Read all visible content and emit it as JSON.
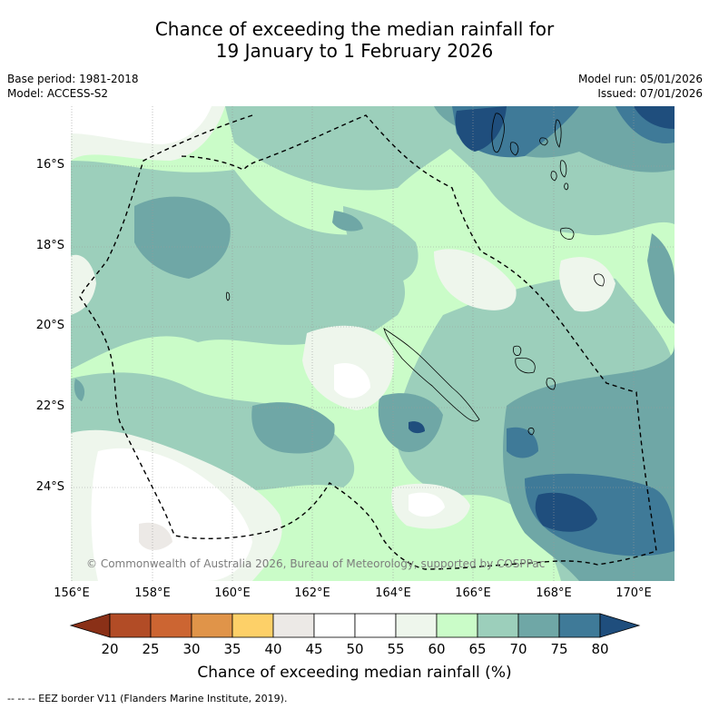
{
  "title": {
    "line1": "Chance of exceeding the median rainfall for",
    "line2": "19 January to 1 February 2026"
  },
  "meta": {
    "base_period": "Base period: 1981-2018",
    "model": "Model: ACCESS-S2",
    "model_run": "Model run: 05/01/2026",
    "issued": "Issued: 07/01/2026"
  },
  "lat_labels": [
    "16°S",
    "18°S",
    "20°S",
    "22°S",
    "24°S"
  ],
  "lon_labels": [
    "156°E",
    "158°E",
    "160°E",
    "162°E",
    "164°E",
    "166°E",
    "168°E",
    "170°E"
  ],
  "copyright": "© Commonwealth of Australia 2026, Bureau of Meteorology, supported by COSPPac",
  "colorbar": {
    "labels": [
      "20",
      "25",
      "30",
      "35",
      "40",
      "45",
      "50",
      "55",
      "60",
      "65",
      "70",
      "75",
      "80"
    ],
    "colors": [
      "#a8421f",
      "#b24c26",
      "#cc6532",
      "#e09449",
      "#fdd068",
      "#ece9e6",
      "#ffffff",
      "#ffffff",
      "#eef6ec",
      "#cafcc8",
      "#9ccfbb",
      "#6fa7a6",
      "#3f7a98"
    ],
    "low_color": "#8a3017",
    "high_color": "#1f4e7d",
    "label": "Chance of exceeding median rainfall (%)"
  },
  "legend_note": "--  --  -- EEZ border V11 (Flanders Marine Institute, 2019).",
  "palette": {
    "p45_50": "#ffffff",
    "p55_60": "#eef6ec",
    "p60_65": "#cafcc8",
    "p65_70": "#9ccfbb",
    "p70_75": "#6fa7a6",
    "p75_80": "#3f7a98",
    "p80": "#1f4e7d"
  }
}
